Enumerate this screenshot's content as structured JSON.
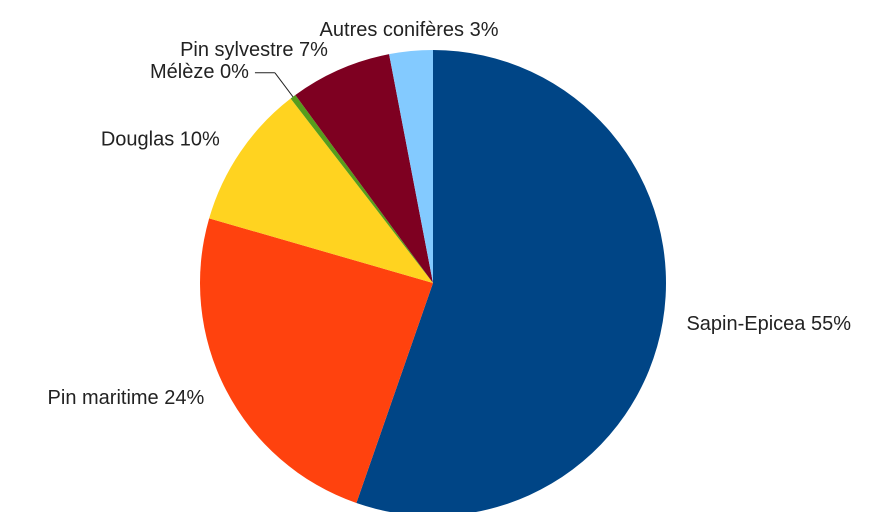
{
  "chart_data": {
    "type": "pie",
    "categories": [
      "Sapin-Epicea",
      "Pin maritime",
      "Douglas",
      "Mélèze",
      "Pin sylvestre",
      "Autres conifères"
    ],
    "values": [
      55,
      24,
      10,
      0.4,
      7,
      3
    ],
    "value_labels": [
      "55%",
      "24%",
      "10%",
      "0%",
      "7%",
      "3%"
    ],
    "colors": [
      "#004586",
      "#ff420e",
      "#ffd320",
      "#579d1c",
      "#7e0021",
      "#83caff"
    ]
  }
}
